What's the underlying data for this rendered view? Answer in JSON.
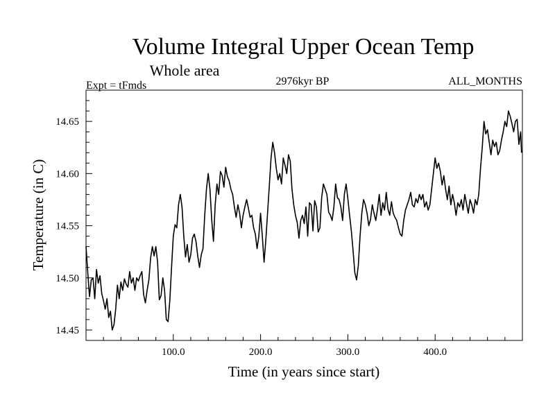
{
  "chart_data": {
    "type": "line",
    "title": "Volume Integral Upper Ocean Temp",
    "subtitle": "Whole area",
    "experiment_label": "Expt = tFmds",
    "period_label": "2976kyr BP",
    "months_label": "ALL_MONTHS",
    "xlabel": "Time (in years since start)",
    "ylabel": "Temperature (in C)",
    "xlim": [
      0,
      500
    ],
    "ylim": [
      14.44,
      14.68
    ],
    "x_ticks": [
      100,
      200,
      300,
      400
    ],
    "x_tick_labels": [
      "100.0",
      "200.0",
      "300.0",
      "400.0"
    ],
    "y_ticks": [
      14.45,
      14.5,
      14.55,
      14.6,
      14.65
    ],
    "y_tick_labels": [
      "14.45",
      "14.50",
      "14.55",
      "14.60",
      "14.65"
    ],
    "grid": false,
    "series": [
      {
        "name": "Volume integral upper ocean temperature",
        "color": "#000000",
        "points": [
          [
            0,
            14.53
          ],
          [
            2,
            14.505
          ],
          [
            4,
            14.482
          ],
          [
            6,
            14.498
          ],
          [
            8,
            14.5
          ],
          [
            10,
            14.48
          ],
          [
            12,
            14.508
          ],
          [
            14,
            14.495
          ],
          [
            16,
            14.502
          ],
          [
            18,
            14.485
          ],
          [
            20,
            14.478
          ],
          [
            22,
            14.47
          ],
          [
            24,
            14.48
          ],
          [
            26,
            14.462
          ],
          [
            28,
            14.468
          ],
          [
            30,
            14.45
          ],
          [
            32,
            14.455
          ],
          [
            34,
            14.47
          ],
          [
            36,
            14.493
          ],
          [
            38,
            14.48
          ],
          [
            40,
            14.496
          ],
          [
            42,
            14.488
          ],
          [
            44,
            14.499
          ],
          [
            46,
            14.494
          ],
          [
            48,
            14.491
          ],
          [
            50,
            14.506
          ],
          [
            52,
            14.495
          ],
          [
            54,
            14.5
          ],
          [
            56,
            14.488
          ],
          [
            58,
            14.5
          ],
          [
            60,
            14.497
          ],
          [
            62,
            14.502
          ],
          [
            64,
            14.506
          ],
          [
            66,
            14.484
          ],
          [
            68,
            14.476
          ],
          [
            70,
            14.488
          ],
          [
            72,
            14.498
          ],
          [
            74,
            14.519
          ],
          [
            76,
            14.53
          ],
          [
            78,
            14.521
          ],
          [
            80,
            14.53
          ],
          [
            82,
            14.515
          ],
          [
            84,
            14.479
          ],
          [
            86,
            14.483
          ],
          [
            88,
            14.5
          ],
          [
            90,
            14.488
          ],
          [
            92,
            14.46
          ],
          [
            94,
            14.458
          ],
          [
            96,
            14.478
          ],
          [
            98,
            14.51
          ],
          [
            100,
            14.54
          ],
          [
            102,
            14.551
          ],
          [
            104,
            14.548
          ],
          [
            106,
            14.57
          ],
          [
            108,
            14.58
          ],
          [
            110,
            14.568
          ],
          [
            112,
            14.54
          ],
          [
            114,
            14.52
          ],
          [
            116,
            14.532
          ],
          [
            118,
            14.515
          ],
          [
            120,
            14.522
          ],
          [
            122,
            14.538
          ],
          [
            124,
            14.542
          ],
          [
            126,
            14.535
          ],
          [
            128,
            14.521
          ],
          [
            130,
            14.51
          ],
          [
            132,
            14.522
          ],
          [
            134,
            14.528
          ],
          [
            136,
            14.56
          ],
          [
            138,
            14.585
          ],
          [
            140,
            14.6
          ],
          [
            142,
            14.585
          ],
          [
            144,
            14.556
          ],
          [
            146,
            14.535
          ],
          [
            148,
            14.57
          ],
          [
            150,
            14.59
          ],
          [
            152,
            14.58
          ],
          [
            154,
            14.602
          ],
          [
            156,
            14.598
          ],
          [
            158,
            14.587
          ],
          [
            160,
            14.606
          ],
          [
            162,
            14.597
          ],
          [
            164,
            14.593
          ],
          [
            166,
            14.585
          ],
          [
            168,
            14.58
          ],
          [
            170,
            14.568
          ],
          [
            172,
            14.558
          ],
          [
            174,
            14.57
          ],
          [
            176,
            14.562
          ],
          [
            178,
            14.548
          ],
          [
            180,
            14.56
          ],
          [
            182,
            14.568
          ],
          [
            184,
            14.575
          ],
          [
            186,
            14.567
          ],
          [
            188,
            14.558
          ],
          [
            190,
            14.56
          ],
          [
            192,
            14.548
          ],
          [
            194,
            14.542
          ],
          [
            196,
            14.528
          ],
          [
            198,
            14.54
          ],
          [
            200,
            14.562
          ],
          [
            202,
            14.54
          ],
          [
            204,
            14.515
          ],
          [
            206,
            14.536
          ],
          [
            208,
            14.562
          ],
          [
            210,
            14.588
          ],
          [
            212,
            14.615
          ],
          [
            214,
            14.63
          ],
          [
            216,
            14.62
          ],
          [
            218,
            14.605
          ],
          [
            220,
            14.594
          ],
          [
            222,
            14.6
          ],
          [
            224,
            14.59
          ],
          [
            226,
            14.615
          ],
          [
            228,
            14.608
          ],
          [
            230,
            14.6
          ],
          [
            232,
            14.618
          ],
          [
            234,
            14.612
          ],
          [
            236,
            14.585
          ],
          [
            238,
            14.57
          ],
          [
            240,
            14.56
          ],
          [
            242,
            14.553
          ],
          [
            244,
            14.538
          ],
          [
            246,
            14.555
          ],
          [
            248,
            14.56
          ],
          [
            250,
            14.552
          ],
          [
            252,
            14.568
          ],
          [
            254,
            14.54
          ],
          [
            256,
            14.572
          ],
          [
            258,
            14.57
          ],
          [
            260,
            14.545
          ],
          [
            262,
            14.574
          ],
          [
            264,
            14.568
          ],
          [
            266,
            14.544
          ],
          [
            268,
            14.548
          ],
          [
            270,
            14.577
          ],
          [
            272,
            14.59
          ],
          [
            274,
            14.585
          ],
          [
            276,
            14.58
          ],
          [
            278,
            14.563
          ],
          [
            280,
            14.56
          ],
          [
            282,
            14.555
          ],
          [
            284,
            14.568
          ],
          [
            286,
            14.59
          ],
          [
            288,
            14.577
          ],
          [
            290,
            14.575
          ],
          [
            292,
            14.568
          ],
          [
            294,
            14.555
          ],
          [
            296,
            14.58
          ],
          [
            298,
            14.59
          ],
          [
            300,
            14.576
          ],
          [
            302,
            14.56
          ],
          [
            304,
            14.545
          ],
          [
            306,
            14.526
          ],
          [
            308,
            14.505
          ],
          [
            310,
            14.498
          ],
          [
            312,
            14.512
          ],
          [
            314,
            14.54
          ],
          [
            316,
            14.562
          ],
          [
            318,
            14.575
          ],
          [
            320,
            14.57
          ],
          [
            322,
            14.562
          ],
          [
            324,
            14.55
          ],
          [
            326,
            14.556
          ],
          [
            328,
            14.57
          ],
          [
            330,
            14.562
          ],
          [
            332,
            14.555
          ],
          [
            334,
            14.566
          ],
          [
            336,
            14.58
          ],
          [
            338,
            14.56
          ],
          [
            340,
            14.572
          ],
          [
            342,
            14.565
          ],
          [
            344,
            14.582
          ],
          [
            346,
            14.566
          ],
          [
            348,
            14.56
          ],
          [
            350,
            14.573
          ],
          [
            352,
            14.562
          ],
          [
            354,
            14.558
          ],
          [
            356,
            14.555
          ],
          [
            358,
            14.548
          ],
          [
            360,
            14.542
          ],
          [
            362,
            14.54
          ],
          [
            364,
            14.555
          ],
          [
            366,
            14.565
          ],
          [
            368,
            14.57
          ],
          [
            370,
            14.575
          ],
          [
            372,
            14.582
          ],
          [
            374,
            14.57
          ],
          [
            376,
            14.568
          ],
          [
            378,
            14.576
          ],
          [
            380,
            14.572
          ],
          [
            382,
            14.58
          ],
          [
            384,
            14.575
          ],
          [
            386,
            14.58
          ],
          [
            388,
            14.568
          ],
          [
            390,
            14.573
          ],
          [
            392,
            14.565
          ],
          [
            394,
            14.57
          ],
          [
            396,
            14.585
          ],
          [
            398,
            14.6
          ],
          [
            400,
            14.615
          ],
          [
            402,
            14.605
          ],
          [
            404,
            14.61
          ],
          [
            406,
            14.602
          ],
          [
            408,
            14.589
          ],
          [
            410,
            14.598
          ],
          [
            412,
            14.585
          ],
          [
            414,
            14.575
          ],
          [
            416,
            14.588
          ],
          [
            418,
            14.57
          ],
          [
            420,
            14.58
          ],
          [
            422,
            14.572
          ],
          [
            424,
            14.56
          ],
          [
            426,
            14.572
          ],
          [
            428,
            14.568
          ],
          [
            430,
            14.575
          ],
          [
            432,
            14.565
          ],
          [
            434,
            14.58
          ],
          [
            436,
            14.571
          ],
          [
            438,
            14.562
          ],
          [
            440,
            14.575
          ],
          [
            442,
            14.57
          ],
          [
            444,
            14.562
          ],
          [
            446,
            14.575
          ],
          [
            448,
            14.57
          ],
          [
            450,
            14.58
          ],
          [
            452,
            14.605
          ],
          [
            454,
            14.625
          ],
          [
            456,
            14.65
          ],
          [
            458,
            14.638
          ],
          [
            460,
            14.642
          ],
          [
            462,
            14.63
          ],
          [
            464,
            14.618
          ],
          [
            466,
            14.632
          ],
          [
            468,
            14.626
          ],
          [
            470,
            14.63
          ],
          [
            472,
            14.618
          ],
          [
            474,
            14.622
          ],
          [
            476,
            14.632
          ],
          [
            478,
            14.64
          ],
          [
            480,
            14.65
          ],
          [
            482,
            14.645
          ],
          [
            484,
            14.66
          ],
          [
            486,
            14.655
          ],
          [
            488,
            14.648
          ],
          [
            490,
            14.64
          ],
          [
            492,
            14.65
          ],
          [
            494,
            14.652
          ],
          [
            496,
            14.628
          ],
          [
            498,
            14.64
          ],
          [
            499,
            14.62
          ]
        ]
      }
    ]
  }
}
